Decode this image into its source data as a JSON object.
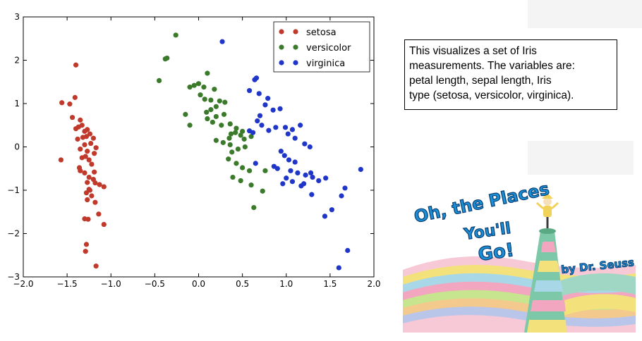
{
  "chart_data": {
    "type": "scatter",
    "xlim": [
      -2.0,
      2.0
    ],
    "ylim": [
      -3,
      3
    ],
    "xticks": [
      "−2.0",
      "−1.5",
      "−1.0",
      "−0.5",
      "0.0",
      "0.5",
      "1.0",
      "1.5",
      "2.0"
    ],
    "xtick_values": [
      -2.0,
      -1.5,
      -1.0,
      -0.5,
      0.0,
      0.5,
      1.0,
      1.5,
      2.0
    ],
    "yticks": [
      "−3",
      "−2",
      "−1",
      "0",
      "1",
      "2",
      "3"
    ],
    "ytick_values": [
      -3,
      -2,
      -1,
      0,
      1,
      2,
      3
    ],
    "legend_position": "top-right",
    "series": [
      {
        "name": "setosa",
        "color": "#c0392b",
        "points": [
          [
            -1.56,
            1.02
          ],
          [
            -1.47,
            0.99
          ],
          [
            -1.4,
            1.89
          ],
          [
            -1.41,
            1.14
          ],
          [
            -1.44,
            0.68
          ],
          [
            -1.35,
            0.62
          ],
          [
            -1.37,
            0.46
          ],
          [
            -1.33,
            0.5
          ],
          [
            -1.3,
            0.36
          ],
          [
            -1.27,
            0.4
          ],
          [
            -1.4,
            0.42
          ],
          [
            -1.32,
            0.22
          ],
          [
            -1.28,
            0.24
          ],
          [
            -1.24,
            0.3
          ],
          [
            -1.2,
            0.2
          ],
          [
            -1.38,
            0.18
          ],
          [
            -1.3,
            0.05
          ],
          [
            -1.23,
            0.08
          ],
          [
            -1.35,
            -0.05
          ],
          [
            -1.27,
            -0.1
          ],
          [
            -1.17,
            -0.02
          ],
          [
            -1.19,
            -0.15
          ],
          [
            -1.33,
            -0.25
          ],
          [
            -1.29,
            -0.22
          ],
          [
            -1.25,
            -0.3
          ],
          [
            -1.22,
            -0.4
          ],
          [
            -1.57,
            -0.3
          ],
          [
            -1.35,
            -0.55
          ],
          [
            -1.3,
            -0.6
          ],
          [
            -1.25,
            -0.7
          ],
          [
            -1.2,
            -0.75
          ],
          [
            -1.18,
            -0.83
          ],
          [
            -1.13,
            -0.87
          ],
          [
            -1.08,
            -0.92
          ],
          [
            -1.27,
            -0.82
          ],
          [
            -1.25,
            -0.98
          ],
          [
            -1.28,
            -1.06
          ],
          [
            -1.22,
            -1.13
          ],
          [
            -1.27,
            -1.22
          ],
          [
            -1.18,
            -1.28
          ],
          [
            -1.14,
            -1.55
          ],
          [
            -1.26,
            -1.67
          ],
          [
            -1.3,
            -1.66
          ],
          [
            -1.08,
            -1.79
          ],
          [
            -1.28,
            -2.25
          ],
          [
            -1.29,
            -2.41
          ],
          [
            -1.17,
            -2.75
          ],
          [
            -1.36,
            -0.48
          ],
          [
            -1.24,
            -1.0
          ],
          [
            -1.19,
            -0.58
          ]
        ]
      },
      {
        "name": "versicolor",
        "color": "#3a7a2a",
        "points": [
          [
            -0.26,
            2.58
          ],
          [
            -0.36,
            2.05
          ],
          [
            -0.38,
            2.03
          ],
          [
            -0.45,
            1.53
          ],
          [
            0.1,
            1.7
          ],
          [
            0.0,
            1.46
          ],
          [
            -0.05,
            1.42
          ],
          [
            -0.1,
            1.38
          ],
          [
            0.06,
            1.38
          ],
          [
            0.18,
            1.33
          ],
          [
            0.02,
            1.2
          ],
          [
            0.07,
            1.1
          ],
          [
            0.14,
            1.08
          ],
          [
            0.24,
            1.06
          ],
          [
            0.3,
            1.03
          ],
          [
            0.2,
            0.93
          ],
          [
            0.14,
            0.86
          ],
          [
            0.09,
            0.8
          ],
          [
            -0.15,
            0.75
          ],
          [
            0.29,
            0.75
          ],
          [
            0.2,
            0.7
          ],
          [
            0.1,
            0.65
          ],
          [
            0.16,
            0.57
          ],
          [
            0.36,
            0.53
          ],
          [
            0.26,
            0.5
          ],
          [
            0.43,
            0.43
          ],
          [
            -0.1,
            0.5
          ],
          [
            0.5,
            0.36
          ],
          [
            0.42,
            0.33
          ],
          [
            0.37,
            0.3
          ],
          [
            0.48,
            0.27
          ],
          [
            0.6,
            0.24
          ],
          [
            0.35,
            0.2
          ],
          [
            0.52,
            0.18
          ],
          [
            0.2,
            0.15
          ],
          [
            0.28,
            0.1
          ],
          [
            0.36,
            0.05
          ],
          [
            0.53,
            0.0
          ],
          [
            0.45,
            -0.05
          ],
          [
            0.38,
            -0.12
          ],
          [
            0.34,
            -0.28
          ],
          [
            0.43,
            -0.38
          ],
          [
            0.5,
            -0.48
          ],
          [
            0.58,
            -0.55
          ],
          [
            0.76,
            -0.55
          ],
          [
            0.39,
            -0.7
          ],
          [
            0.48,
            -0.78
          ],
          [
            0.6,
            -0.88
          ],
          [
            0.73,
            -1.02
          ],
          [
            0.63,
            -1.4
          ]
        ]
      },
      {
        "name": "virginica",
        "color": "#1f36c9",
        "points": [
          [
            0.27,
            2.43
          ],
          [
            0.66,
            1.59
          ],
          [
            0.64,
            1.55
          ],
          [
            0.58,
            1.3
          ],
          [
            0.69,
            1.23
          ],
          [
            0.79,
            1.12
          ],
          [
            0.76,
            0.97
          ],
          [
            0.93,
            0.88
          ],
          [
            0.85,
            0.85
          ],
          [
            0.7,
            0.72
          ],
          [
            0.67,
            0.6
          ],
          [
            0.72,
            0.5
          ],
          [
            0.88,
            0.45
          ],
          [
            0.58,
            0.37
          ],
          [
            0.62,
            0.33
          ],
          [
            0.8,
            0.38
          ],
          [
            0.99,
            0.45
          ],
          [
            1.07,
            0.4
          ],
          [
            1.16,
            0.5
          ],
          [
            1.02,
            0.3
          ],
          [
            1.1,
            0.2
          ],
          [
            1.21,
            0.07
          ],
          [
            1.27,
            0.0
          ],
          [
            0.94,
            -0.1
          ],
          [
            0.98,
            -0.2
          ],
          [
            1.03,
            -0.3
          ],
          [
            1.1,
            -0.35
          ],
          [
            0.9,
            -0.5
          ],
          [
            0.86,
            -0.45
          ],
          [
            1.05,
            -0.55
          ],
          [
            1.13,
            -0.6
          ],
          [
            1.22,
            -0.65
          ],
          [
            1.3,
            -0.7
          ],
          [
            1.37,
            -0.78
          ],
          [
            1.45,
            -0.72
          ],
          [
            1.0,
            -0.72
          ],
          [
            1.07,
            -0.8
          ],
          [
            1.17,
            -0.9
          ],
          [
            1.2,
            -0.85
          ],
          [
            0.96,
            -0.85
          ],
          [
            1.29,
            -1.1
          ],
          [
            1.67,
            -0.95
          ],
          [
            1.63,
            -1.13
          ],
          [
            1.52,
            -1.45
          ],
          [
            1.44,
            -1.6
          ],
          [
            1.85,
            -0.52
          ],
          [
            1.7,
            -2.39
          ],
          [
            1.6,
            -2.79
          ],
          [
            0.65,
            -0.38
          ],
          [
            1.28,
            -0.6
          ]
        ]
      }
    ]
  },
  "caption": {
    "text": "This visualizes a set of Iris\nmeasurements. The  variables are:\npetal length,  sepal length, Iris\ntype  (setosa, versicolor, virginica)."
  },
  "book": {
    "title_line1": "Oh, the Places",
    "title_line2": "You'll",
    "title_line3": "Go!",
    "author": "by Dr. Seuss"
  }
}
